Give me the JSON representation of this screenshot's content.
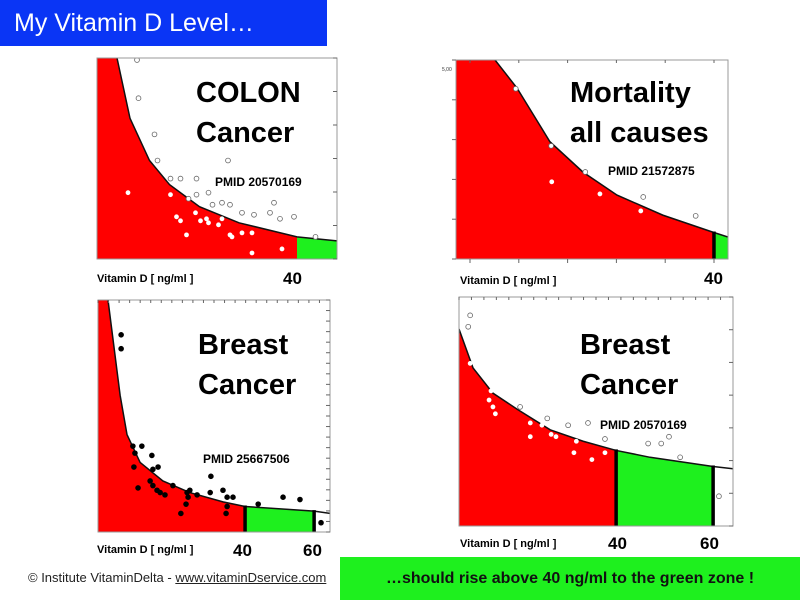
{
  "title": "My Vitamin D Level…",
  "footer": {
    "copyright": "© Institute VitaminDelta - ",
    "link": "www.vitaminDservice.com"
  },
  "banner": "…should rise above 40 ng/ml to the green zone !",
  "colors": {
    "title_bg": "#0a35f5",
    "red_zone": "#ff0000",
    "green_zone": "#1ef01e",
    "banner_bg": "#1ef01e"
  },
  "chart_data": [
    {
      "type": "area",
      "title_lines": [
        "COLON",
        "Cancer"
      ],
      "pmid": "PMID 20570169",
      "xlabel": "Vitamin D   [ ng/ml ]",
      "x_tick_labels": [
        "40"
      ],
      "xlim": [
        0,
        48
      ],
      "ylim": [
        0,
        1
      ],
      "marker_style": {
        "above": "hollow-grey",
        "below": "white"
      },
      "curve": [
        [
          4,
          1
        ],
        [
          6.6,
          0.7
        ],
        [
          10.5,
          0.49
        ],
        [
          14.5,
          0.37
        ],
        [
          20.5,
          0.26
        ],
        [
          28.4,
          0.18
        ],
        [
          40,
          0.11
        ],
        [
          48,
          0.09
        ]
      ],
      "zones": [
        {
          "from": 0,
          "to": 40,
          "color": "#ff0000"
        },
        {
          "from": 40,
          "to": 48,
          "color": "#1ef01e"
        }
      ],
      "markers": [],
      "points_hollow": [
        [
          8.0,
          0.99
        ],
        [
          8.3,
          0.8
        ],
        [
          11.5,
          0.62
        ],
        [
          12.1,
          0.49
        ],
        [
          14.7,
          0.4
        ],
        [
          16.7,
          0.4
        ],
        [
          19.9,
          0.4
        ],
        [
          26.2,
          0.49
        ],
        [
          19.9,
          0.32
        ],
        [
          22.3,
          0.33
        ],
        [
          18.3,
          0.3
        ],
        [
          23.1,
          0.27
        ],
        [
          25.0,
          0.28
        ],
        [
          26.6,
          0.27
        ],
        [
          29.0,
          0.23
        ],
        [
          31.4,
          0.22
        ],
        [
          34.6,
          0.23
        ],
        [
          35.4,
          0.28
        ],
        [
          36.6,
          0.2
        ],
        [
          39.4,
          0.21
        ],
        [
          43.7,
          0.11
        ]
      ],
      "points_filled": [
        [
          6.2,
          0.33
        ],
        [
          14.7,
          0.32
        ],
        [
          15.9,
          0.21
        ],
        [
          16.7,
          0.19
        ],
        [
          17.9,
          0.12
        ],
        [
          19.7,
          0.23
        ],
        [
          20.7,
          0.19
        ],
        [
          21.9,
          0.2
        ],
        [
          22.3,
          0.18
        ],
        [
          24.3,
          0.17
        ],
        [
          25.0,
          0.2
        ],
        [
          26.6,
          0.12
        ],
        [
          27.0,
          0.11
        ],
        [
          29.0,
          0.13
        ],
        [
          31.0,
          0.13
        ],
        [
          31.0,
          0.03
        ],
        [
          37.0,
          0.05
        ]
      ]
    },
    {
      "type": "area",
      "title_lines": [
        "Mortality",
        "all causes"
      ],
      "pmid": "PMID 21572875",
      "xlabel": "Vitamin D   [ ng/ml ]",
      "x_tick_labels": [
        "40"
      ],
      "y_tick_labels": [
        "5,00"
      ],
      "xlim": [
        -2.3,
        42.3
      ],
      "ylim": [
        0,
        5.26
      ],
      "marker_style": {
        "above": "hollow-grey",
        "below": "white"
      },
      "curve": [
        [
          4.1,
          5.26
        ],
        [
          7.7,
          4.52
        ],
        [
          13.1,
          3.1
        ],
        [
          18.5,
          2.3
        ],
        [
          24.1,
          1.69
        ],
        [
          31.6,
          1.16
        ],
        [
          39.8,
          0.71
        ],
        [
          42.3,
          0.58
        ]
      ],
      "zones": [
        {
          "from": -2.3,
          "to": 40,
          "color": "#ff0000"
        },
        {
          "from": 40,
          "to": 42.3,
          "color": "#1ef01e"
        }
      ],
      "markers": [
        40
      ],
      "points_hollow": [
        [
          7.5,
          4.5
        ],
        [
          13.3,
          2.99
        ],
        [
          18.9,
          2.3
        ],
        [
          28.4,
          1.64
        ],
        [
          37.0,
          1.14
        ]
      ],
      "points_filled": [
        [
          13.4,
          2.04
        ],
        [
          21.3,
          1.72
        ],
        [
          28.0,
          1.27
        ]
      ]
    },
    {
      "type": "area",
      "title_lines": [
        "Breast",
        "Cancer"
      ],
      "pmid": "PMID 25667506",
      "xlabel": "Vitamin D   [ ng/ml ]",
      "x_tick_labels": [
        "40",
        "60"
      ],
      "xlim": [
        -2.6,
        64.6
      ],
      "ylim": [
        0,
        1
      ],
      "marker_style": {
        "above": "black",
        "below": "black"
      },
      "curve": [
        [
          0.3,
          1.0
        ],
        [
          3.8,
          0.59
        ],
        [
          5.8,
          0.42
        ],
        [
          9.6,
          0.3
        ],
        [
          16.2,
          0.22
        ],
        [
          24,
          0.17
        ],
        [
          33.6,
          0.13
        ],
        [
          40,
          0.11
        ],
        [
          60,
          0.09
        ],
        [
          64.6,
          0.08
        ]
      ],
      "zones": [
        {
          "from": -2.6,
          "to": 40,
          "color": "#ff0000"
        },
        {
          "from": 40,
          "to": 60,
          "color": "#1ef01e"
        }
      ],
      "markers": [
        40,
        60
      ],
      "points_hollow": [],
      "points_filled": [
        [
          4.1,
          0.85
        ],
        [
          4.1,
          0.79
        ],
        [
          7.5,
          0.37
        ],
        [
          10.1,
          0.37
        ],
        [
          8.1,
          0.34
        ],
        [
          13,
          0.33
        ],
        [
          7.8,
          0.28
        ],
        [
          14.8,
          0.28
        ],
        [
          13.3,
          0.27
        ],
        [
          9,
          0.19
        ],
        [
          12.5,
          0.22
        ],
        [
          13.3,
          0.2
        ],
        [
          14.5,
          0.18
        ],
        [
          15.4,
          0.17
        ],
        [
          16.8,
          0.16
        ],
        [
          19.1,
          0.2
        ],
        [
          23.2,
          0.17
        ],
        [
          24,
          0.18
        ],
        [
          23.5,
          0.15
        ],
        [
          26.1,
          0.16
        ],
        [
          22.9,
          0.12
        ],
        [
          21.4,
          0.08
        ],
        [
          30.1,
          0.24
        ],
        [
          29.9,
          0.17
        ],
        [
          33.6,
          0.18
        ],
        [
          34.8,
          0.15
        ],
        [
          36.5,
          0.15
        ],
        [
          34.8,
          0.11
        ],
        [
          34.5,
          0.08
        ],
        [
          43.8,
          0.12
        ],
        [
          51,
          0.15
        ],
        [
          55.9,
          0.14
        ],
        [
          62,
          0.04
        ]
      ]
    },
    {
      "type": "area",
      "title_lines": [
        "Breast",
        "Cancer"
      ],
      "pmid": "PMID 20570169",
      "xlabel": "Vitamin D   [ ng/ml ]",
      "x_tick_labels": [
        "40",
        "60"
      ],
      "xlim": [
        7.6,
        64.1
      ],
      "ylim": [
        0,
        1
      ],
      "marker_style": {
        "above": "hollow-grey",
        "below": "white"
      },
      "curve": [
        [
          7.6,
          0.86
        ],
        [
          10.5,
          0.69
        ],
        [
          14.6,
          0.58
        ],
        [
          19.6,
          0.51
        ],
        [
          26.4,
          0.42
        ],
        [
          33.2,
          0.37
        ],
        [
          40,
          0.33
        ],
        [
          47,
          0.3
        ],
        [
          60,
          0.26
        ],
        [
          64.1,
          0.25
        ]
      ],
      "zones": [
        {
          "from": 7.6,
          "to": 40,
          "color": "#ff0000"
        },
        {
          "from": 40,
          "to": 60,
          "color": "#1ef01e"
        }
      ],
      "markers": [
        40,
        60
      ],
      "points_hollow": [
        [
          9.9,
          0.92
        ],
        [
          9.5,
          0.87
        ],
        [
          20.2,
          0.52
        ],
        [
          25.8,
          0.47
        ],
        [
          30.1,
          0.44
        ],
        [
          34.2,
          0.45
        ],
        [
          37.7,
          0.38
        ],
        [
          46.6,
          0.36
        ],
        [
          49.3,
          0.36
        ],
        [
          50.9,
          0.39
        ],
        [
          53.2,
          0.3
        ],
        [
          61.2,
          0.13
        ]
      ],
      "points_filled": [
        [
          9.9,
          0.71
        ],
        [
          14.2,
          0.59
        ],
        [
          13.8,
          0.55
        ],
        [
          14.6,
          0.52
        ],
        [
          15.1,
          0.49
        ],
        [
          22.3,
          0.45
        ],
        [
          24.7,
          0.44
        ],
        [
          26.6,
          0.4
        ],
        [
          27.6,
          0.39
        ],
        [
          22.3,
          0.39
        ],
        [
          31.8,
          0.37
        ],
        [
          31.3,
          0.32
        ],
        [
          35,
          0.29
        ],
        [
          37.7,
          0.32
        ]
      ]
    }
  ]
}
